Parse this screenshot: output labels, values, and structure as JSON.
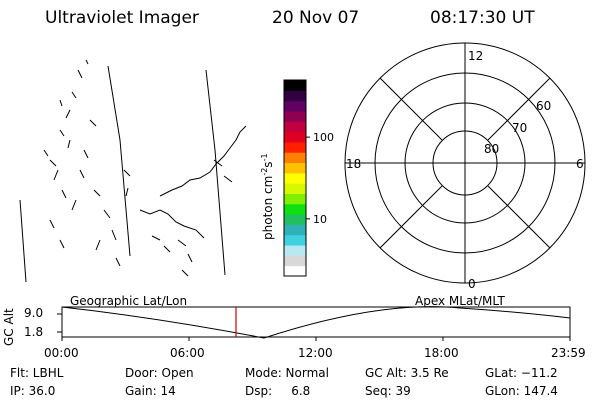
{
  "header": {
    "title": "Ultraviolet Imager",
    "date": "20 Nov 07",
    "time": "08:17:30 UT"
  },
  "colorbar": {
    "label": "photon cm",
    "label_exp": "-2",
    "label_s": "s",
    "label_s_exp": "-1",
    "ticks": [
      {
        "value": "100",
        "level": 100
      },
      {
        "value": "10",
        "level": 10
      }
    ],
    "range": [
      2,
      500
    ],
    "colors": [
      "#ffffff",
      "#d8d8d8",
      "#b8e8f0",
      "#40d0e0",
      "#30b0b8",
      "#20c060",
      "#10e010",
      "#80f000",
      "#d8f800",
      "#ffff00",
      "#ffc000",
      "#ff8000",
      "#ff2000",
      "#e00020",
      "#c00040",
      "#900050",
      "#600060",
      "#300040",
      "#000000"
    ]
  },
  "polar": {
    "mlt_labels": [
      "12",
      "18",
      "6",
      "0"
    ],
    "lat_labels": [
      "60",
      "70",
      "80"
    ]
  },
  "orbit": {
    "axis_label": "GC Alt",
    "y_max": "9.0",
    "y_min": "1.8",
    "left_title": "Geographic Lat/Lon",
    "right_title": "Apex  MLat/MLT",
    "x_ticks": [
      "00:00",
      "06:00",
      "12:00",
      "18:00",
      "23:59"
    ],
    "marker_color": "#d00000"
  },
  "footer": {
    "flt": "Flt: LBHL",
    "ip": "IP: 36.0",
    "door": "Door: Open",
    "gain": "Gain: 14",
    "mode": "Mode: Normal",
    "dsp": "Dsp:     6.8",
    "gcalt": "GC Alt: 3.5 Re",
    "seq": "Seq: 39",
    "glat": "GLat: −11.2",
    "glon": "GLon: 147.4"
  }
}
